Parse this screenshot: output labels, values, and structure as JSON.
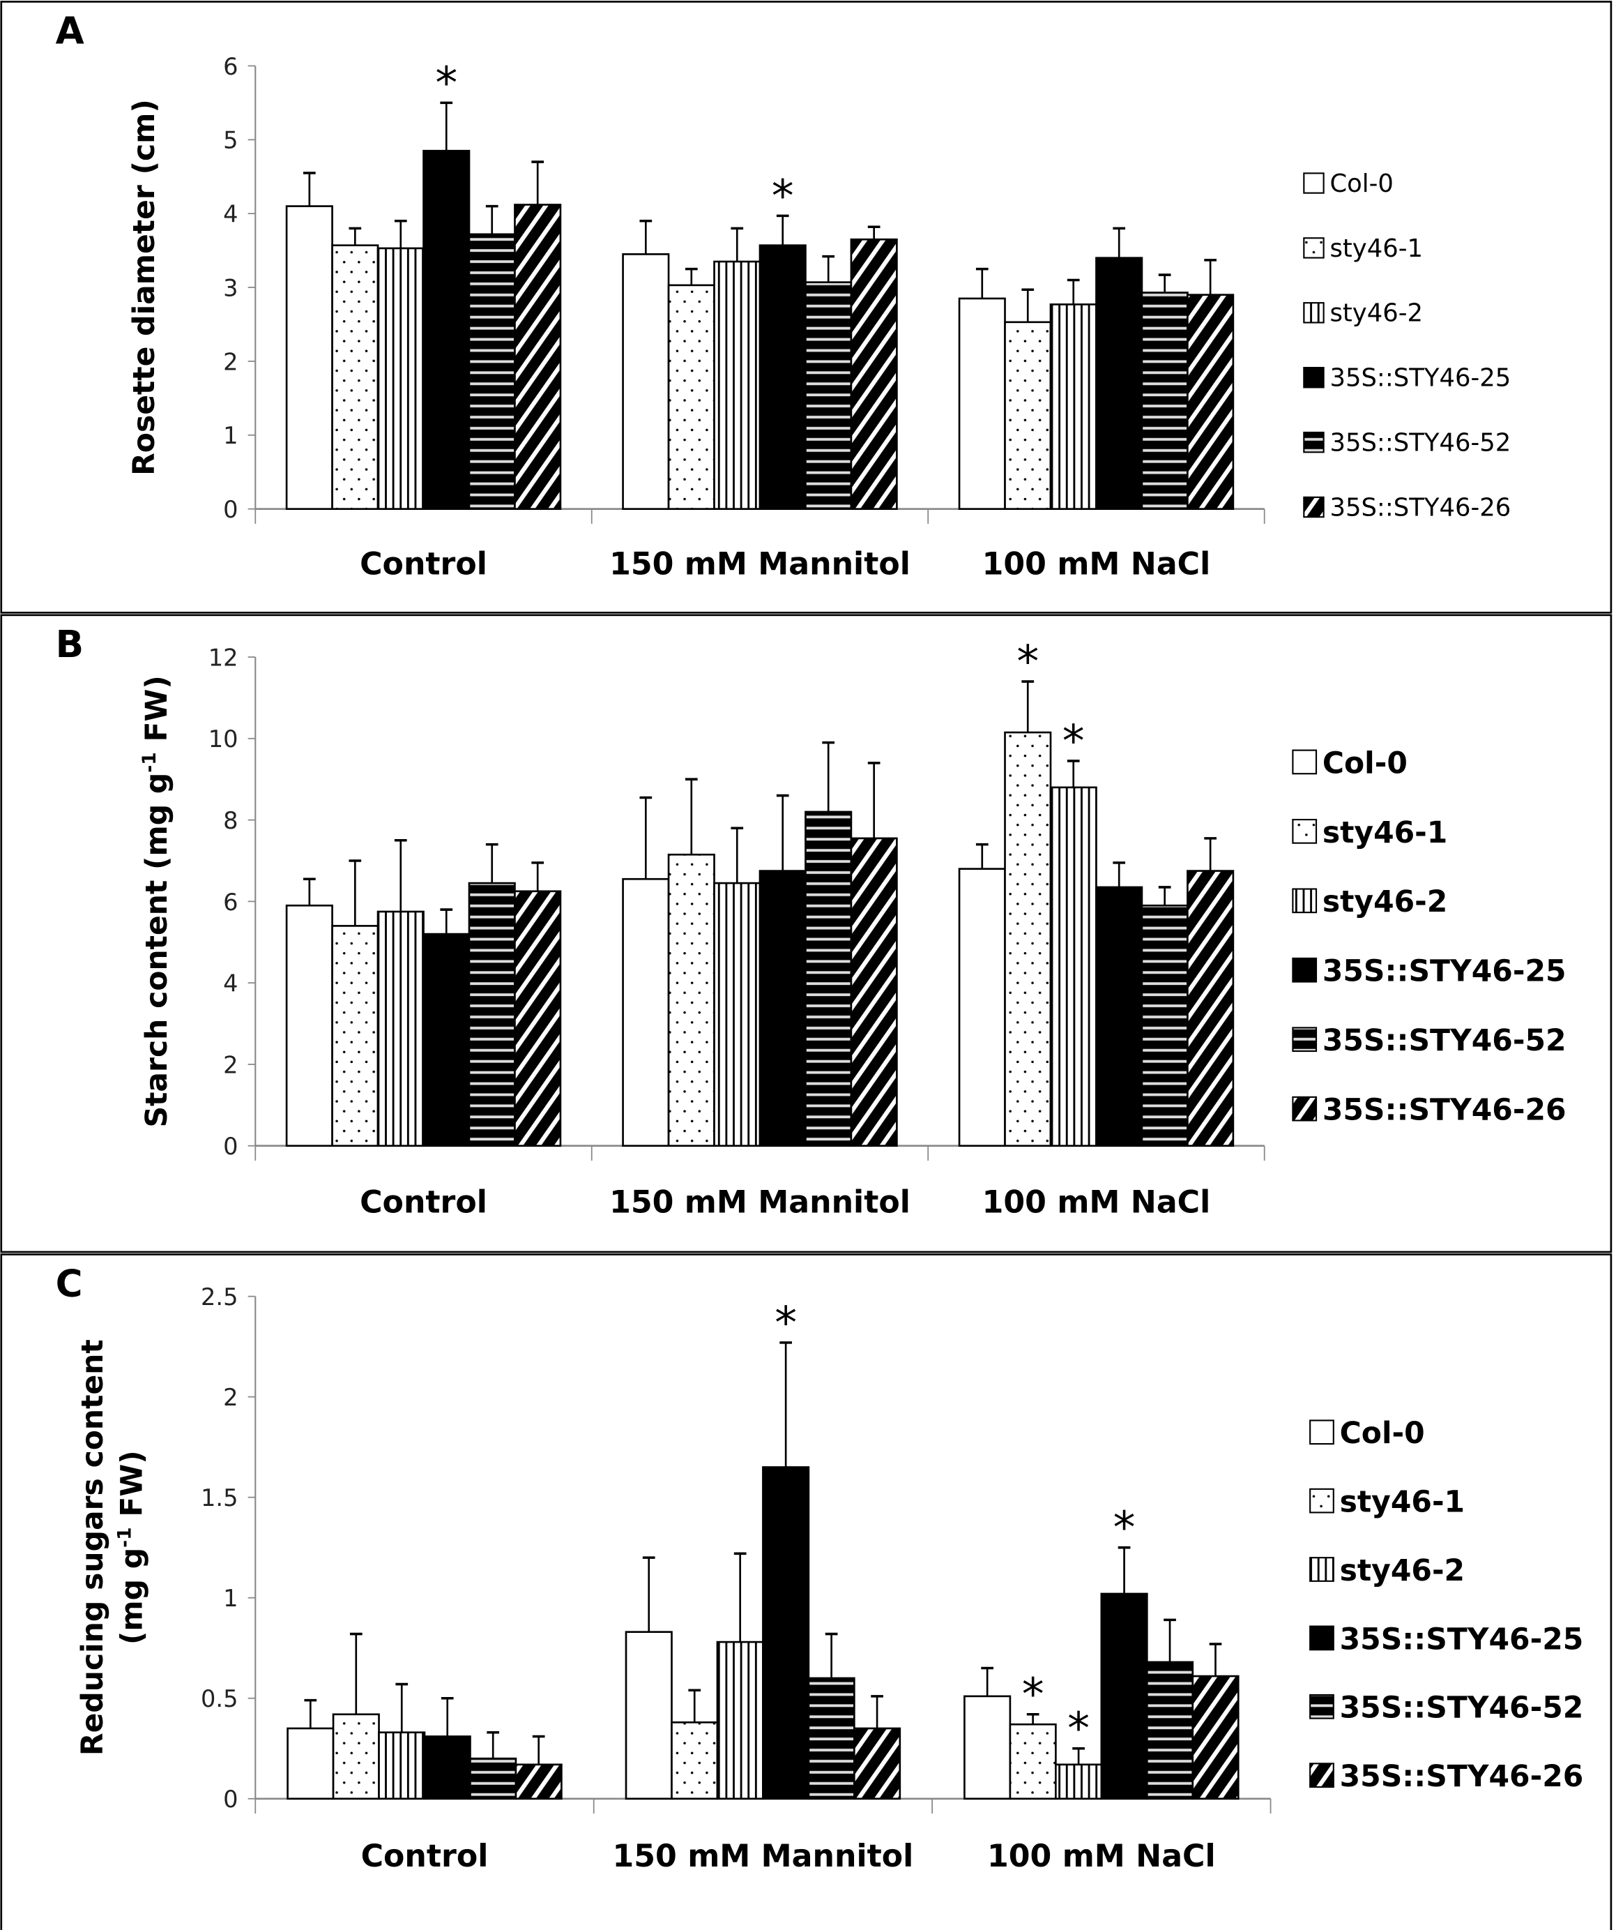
{
  "chart_data": [
    {
      "type": "bar",
      "panel_label": "A",
      "ylabel": {
        "main": "Rosette diameter (cm)"
      },
      "ylim": [
        0,
        6
      ],
      "yticks": [
        "0",
        "1",
        "2",
        "3",
        "4",
        "5",
        "6"
      ],
      "categories": [
        "Control",
        "150 mM Mannitol",
        "100 mM NaCl"
      ],
      "legend": [
        "Col-0",
        "sty46-1",
        "sty46-2",
        "35S::STY46-25",
        "35S::STY46-52",
        "35S::STY46-26"
      ],
      "legend_placement": "right",
      "series": [
        {
          "name": "Col-0",
          "values": [
            4.1,
            3.45,
            2.85
          ],
          "error_upper": [
            4.55,
            3.9,
            3.25
          ]
        },
        {
          "name": "sty46-1",
          "values": [
            3.57,
            3.03,
            2.53
          ],
          "error_upper": [
            3.8,
            3.25,
            2.97
          ]
        },
        {
          "name": "sty46-2",
          "values": [
            3.53,
            3.35,
            2.77
          ],
          "error_upper": [
            3.9,
            3.8,
            3.1
          ]
        },
        {
          "name": "35S::STY46-25",
          "values": [
            4.85,
            3.57,
            3.4
          ],
          "error_upper": [
            5.5,
            3.97,
            3.8
          ]
        },
        {
          "name": "35S::STY46-52",
          "values": [
            3.72,
            3.07,
            2.93
          ],
          "error_upper": [
            4.1,
            3.42,
            3.17
          ]
        },
        {
          "name": "35S::STY46-26",
          "values": [
            4.12,
            3.65,
            2.9
          ],
          "error_upper": [
            4.7,
            3.82,
            3.37
          ]
        }
      ],
      "significance": [
        [
          0,
          3
        ],
        [
          1,
          3
        ]
      ],
      "significance_mark": "*"
    },
    {
      "type": "bar",
      "panel_label": "B",
      "ylabel": {
        "main": "Starch content (mg g",
        "sup": "-1",
        "tail": " FW)"
      },
      "ylim": [
        0,
        12
      ],
      "yticks": [
        "0",
        "2",
        "4",
        "6",
        "8",
        "10",
        "12"
      ],
      "categories": [
        "Control",
        "150 mM Mannitol",
        "100 mM NaCl"
      ],
      "legend": [
        "Col-0",
        "sty46-1",
        "sty46-2",
        "35S::STY46-25",
        "35S::STY46-52",
        "35S::STY46-26"
      ],
      "legend_placement": "right",
      "series": [
        {
          "name": "Col-0",
          "values": [
            5.9,
            6.55,
            6.8
          ],
          "error_upper": [
            6.55,
            8.55,
            7.4
          ]
        },
        {
          "name": "sty46-1",
          "values": [
            5.4,
            7.15,
            10.15
          ],
          "error_upper": [
            7.0,
            9.0,
            11.4
          ]
        },
        {
          "name": "sty46-2",
          "values": [
            5.75,
            6.45,
            8.8
          ],
          "error_upper": [
            7.5,
            7.8,
            9.45
          ]
        },
        {
          "name": "35S::STY46-25",
          "values": [
            5.2,
            6.75,
            6.35
          ],
          "error_upper": [
            5.8,
            8.6,
            6.95
          ]
        },
        {
          "name": "35S::STY46-52",
          "values": [
            6.45,
            8.2,
            5.9
          ],
          "error_upper": [
            7.4,
            9.9,
            6.35
          ]
        },
        {
          "name": "35S::STY46-26",
          "values": [
            6.25,
            7.55,
            6.75
          ],
          "error_upper": [
            6.95,
            9.4,
            7.55
          ]
        }
      ],
      "significance": [
        [
          2,
          1
        ],
        [
          2,
          2
        ]
      ],
      "significance_mark": "*"
    },
    {
      "type": "bar",
      "panel_label": "C",
      "ylabel": {
        "line1": "Reducing sugars content",
        "main": "(mg g",
        "sup": "-1",
        "tail": " FW)"
      },
      "ylim": [
        0,
        2.5
      ],
      "yticks": [
        "0",
        "0.5",
        "1",
        "1.5",
        "2",
        "2.5"
      ],
      "categories": [
        "Control",
        "150 mM Mannitol",
        "100 mM NaCl"
      ],
      "legend": [
        "Col-0",
        "sty46-1",
        "sty46-2",
        "35S::STY46-25",
        "35S::STY46-52",
        "35S::STY46-26"
      ],
      "legend_placement": "right",
      "series": [
        {
          "name": "Col-0",
          "values": [
            0.35,
            0.83,
            0.51
          ],
          "error_upper": [
            0.49,
            1.2,
            0.65
          ]
        },
        {
          "name": "sty46-1",
          "values": [
            0.42,
            0.38,
            0.37
          ],
          "error_upper": [
            0.82,
            0.54,
            0.42
          ]
        },
        {
          "name": "sty46-2",
          "values": [
            0.33,
            0.78,
            0.17
          ],
          "error_upper": [
            0.57,
            1.22,
            0.25
          ]
        },
        {
          "name": "35S::STY46-25",
          "values": [
            0.31,
            1.65,
            1.02
          ],
          "error_upper": [
            0.5,
            2.27,
            1.25
          ]
        },
        {
          "name": "35S::STY46-52",
          "values": [
            0.2,
            0.6,
            0.68
          ],
          "error_upper": [
            0.33,
            0.82,
            0.89
          ]
        },
        {
          "name": "35S::STY46-26",
          "values": [
            0.17,
            0.35,
            0.61
          ],
          "error_upper": [
            0.31,
            0.51,
            0.77
          ]
        }
      ],
      "significance": [
        [
          1,
          3
        ],
        [
          2,
          1
        ],
        [
          2,
          2
        ],
        [
          2,
          3
        ]
      ],
      "significance_mark": "*"
    }
  ]
}
